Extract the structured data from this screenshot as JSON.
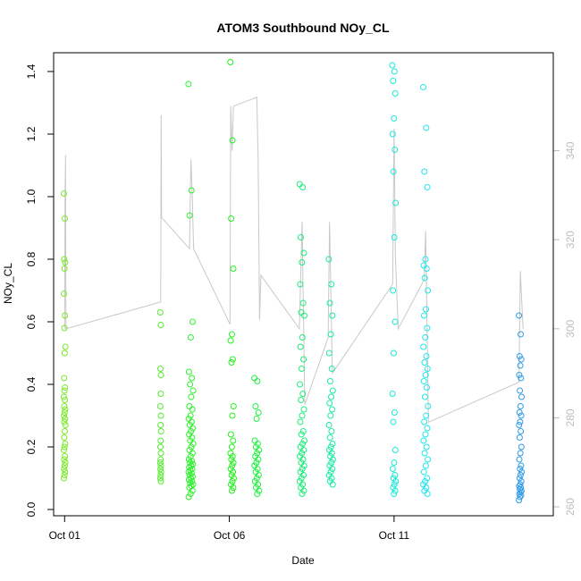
{
  "chart_data": {
    "type": "scatter",
    "title": "ATOM3 Southbound NOy_CL",
    "xlabel": "Date",
    "ylabel": "NOy_CL",
    "x_type": "date",
    "xlim": [
      "2017-09-30T16:00",
      "2017-10-15T20:00"
    ],
    "ylim": [
      -0.02,
      1.46
    ],
    "y_ticks": [
      0.0,
      0.2,
      0.4,
      0.6,
      0.8,
      1.0,
      1.2,
      1.4
    ],
    "x_ticks": [
      {
        "label": "Oct 01",
        "date": "2017-10-01T00:00"
      },
      {
        "label": "Oct 06",
        "date": "2017-10-06T00:00"
      },
      {
        "label": "Oct 11",
        "date": "2017-10-11T00:00"
      }
    ],
    "y2lim": [
      258,
      362
    ],
    "y2_ticks": [
      260,
      280,
      300,
      320,
      340
    ],
    "y2_color": "#bdbdbd",
    "grid": false,
    "legend": "none",
    "point_style": "open-circle",
    "flights": [
      {
        "center": "2017-10-01T00:00",
        "width_h": 1.2,
        "color": "#7ce92a",
        "values": [
          1.01,
          0.93,
          0.8,
          0.79,
          0.77,
          0.69,
          0.62,
          0.58,
          0.52,
          0.5,
          0.42,
          0.39,
          0.38,
          0.36,
          0.35,
          0.33,
          0.32,
          0.31,
          0.3,
          0.29,
          0.28,
          0.27,
          0.25,
          0.23,
          0.21,
          0.2,
          0.19,
          0.17,
          0.16,
          0.15,
          0.14,
          0.13,
          0.12,
          0.11,
          0.1
        ]
      },
      {
        "center": "2017-10-03T22:00",
        "width_h": 0.6,
        "color": "#55ec2e",
        "values": [
          0.63,
          0.59,
          0.45,
          0.43,
          0.37,
          0.33,
          0.3,
          0.27,
          0.25,
          0.22,
          0.2,
          0.18,
          0.16,
          0.15,
          0.14,
          0.13,
          0.12,
          0.11,
          0.1,
          0.09
        ]
      },
      {
        "center": "2017-10-04T20:00",
        "width_h": 3.5,
        "color": "#2ff02e",
        "values": [
          1.36,
          1.02,
          0.94,
          0.6,
          0.55,
          0.44,
          0.42,
          0.4,
          0.38,
          0.36,
          0.33,
          0.32,
          0.3,
          0.29,
          0.28,
          0.27,
          0.26,
          0.25,
          0.24,
          0.23,
          0.22,
          0.21,
          0.2,
          0.19,
          0.18,
          0.17,
          0.16,
          0.155,
          0.15,
          0.145,
          0.14,
          0.135,
          0.13,
          0.125,
          0.12,
          0.115,
          0.11,
          0.105,
          0.1,
          0.095,
          0.09,
          0.085,
          0.08,
          0.075,
          0.07,
          0.06,
          0.05,
          0.04
        ]
      },
      {
        "center": "2017-10-06T02:00",
        "width_h": 2.5,
        "color": "#22f21e",
        "values": [
          1.43,
          1.18,
          0.93,
          0.77,
          0.56,
          0.54,
          0.48,
          0.47,
          0.33,
          0.3,
          0.24,
          0.22,
          0.2,
          0.18,
          0.17,
          0.16,
          0.15,
          0.14,
          0.13,
          0.12,
          0.11,
          0.1,
          0.09,
          0.08,
          0.07,
          0.06
        ]
      },
      {
        "center": "2017-10-06T20:00",
        "width_h": 3.5,
        "color": "#20f040",
        "values": [
          0.42,
          0.41,
          0.33,
          0.31,
          0.29,
          0.22,
          0.21,
          0.2,
          0.19,
          0.18,
          0.17,
          0.16,
          0.15,
          0.14,
          0.13,
          0.12,
          0.11,
          0.1,
          0.09,
          0.08,
          0.07,
          0.06,
          0.05
        ]
      },
      {
        "center": "2017-10-08T05:00",
        "width_h": 3.5,
        "color": "#1cee7a",
        "values": [
          1.04,
          1.03,
          0.87,
          0.82,
          0.79,
          0.72,
          0.66,
          0.63,
          0.62,
          0.55,
          0.52,
          0.48,
          0.45,
          0.4,
          0.37,
          0.35,
          0.32,
          0.3,
          0.28,
          0.25,
          0.24,
          0.22,
          0.21,
          0.2,
          0.19,
          0.18,
          0.17,
          0.16,
          0.15,
          0.14,
          0.13,
          0.12,
          0.11,
          0.1,
          0.09,
          0.08,
          0.07,
          0.06,
          0.05
        ]
      },
      {
        "center": "2017-10-09T02:00",
        "width_h": 3.0,
        "color": "#1ceaa4",
        "values": [
          0.8,
          0.72,
          0.66,
          0.62,
          0.56,
          0.5,
          0.45,
          0.41,
          0.38,
          0.36,
          0.34,
          0.32,
          0.3,
          0.27,
          0.25,
          0.23,
          0.21,
          0.2,
          0.19,
          0.18,
          0.17,
          0.16,
          0.15,
          0.14,
          0.13,
          0.12,
          0.11,
          0.1,
          0.09,
          0.08
        ]
      },
      {
        "center": "2017-10-11T00:00",
        "width_h": 2.5,
        "color": "#1ce8d8",
        "values": [
          1.42,
          1.4,
          1.37,
          1.33,
          1.25,
          1.2,
          1.15,
          1.08,
          0.98,
          0.87,
          0.7,
          0.6,
          0.5,
          0.37,
          0.31,
          0.28,
          0.19,
          0.15,
          0.13,
          0.11,
          0.1,
          0.09,
          0.08,
          0.07,
          0.06,
          0.05
        ]
      },
      {
        "center": "2017-10-11T23:00",
        "width_h": 3.5,
        "color": "#22e6ec",
        "values": [
          1.35,
          1.22,
          1.08,
          1.03,
          0.8,
          0.78,
          0.77,
          0.74,
          0.7,
          0.64,
          0.62,
          0.58,
          0.55,
          0.52,
          0.49,
          0.47,
          0.45,
          0.43,
          0.41,
          0.39,
          0.36,
          0.33,
          0.3,
          0.28,
          0.26,
          0.24,
          0.22,
          0.2,
          0.18,
          0.16,
          0.14,
          0.12,
          0.1,
          0.09,
          0.08,
          0.07,
          0.06,
          0.05
        ]
      },
      {
        "center": "2017-10-14T20:00",
        "width_h": 2.0,
        "color": "#2f9be8",
        "values": [
          0.62,
          0.56,
          0.49,
          0.48,
          0.46,
          0.43,
          0.42,
          0.38,
          0.36,
          0.33,
          0.31,
          0.3,
          0.28,
          0.27,
          0.25,
          0.23,
          0.2,
          0.18,
          0.16,
          0.14,
          0.13,
          0.12,
          0.11,
          0.1,
          0.09,
          0.08,
          0.075,
          0.07,
          0.065,
          0.06,
          0.055,
          0.05,
          0.045,
          0.04,
          0.03
        ]
      }
    ],
    "secondary_line": {
      "color": "#c8c8c8",
      "path": [
        [
          "2017-10-01T00:00",
          300
        ],
        [
          "2017-10-01T00:20",
          330
        ],
        [
          "2017-10-01T00:40",
          339
        ],
        [
          "2017-10-01T01:00",
          300
        ],
        [
          "2017-10-03T22:00",
          306
        ],
        [
          "2017-10-03T22:20",
          348
        ],
        [
          "2017-10-03T22:40",
          325
        ],
        [
          "2017-10-04T19:00",
          318
        ],
        [
          "2017-10-04T20:00",
          338
        ],
        [
          "2017-10-04T21:00",
          330
        ],
        [
          "2017-10-04T22:00",
          318
        ],
        [
          "2017-10-06T00:30",
          301
        ],
        [
          "2017-10-06T01:00",
          350
        ],
        [
          "2017-10-06T02:00",
          340
        ],
        [
          "2017-10-06T03:00",
          350
        ],
        [
          "2017-10-06T20:00",
          352
        ],
        [
          "2017-10-06T21:00",
          338
        ],
        [
          "2017-10-06T22:00",
          302
        ],
        [
          "2017-10-06T23:00",
          312
        ],
        [
          "2017-10-08T03:00",
          300
        ],
        [
          "2017-10-08T05:00",
          324
        ],
        [
          "2017-10-08T07:00",
          283
        ],
        [
          "2017-10-09T00:00",
          298
        ],
        [
          "2017-10-09T01:00",
          324
        ],
        [
          "2017-10-09T03:00",
          290
        ],
        [
          "2017-10-10T23:00",
          310
        ],
        [
          "2017-10-11T00:00",
          345
        ],
        [
          "2017-10-11T01:00",
          316
        ],
        [
          "2017-10-11T03:00",
          300
        ],
        [
          "2017-10-11T22:00",
          311
        ],
        [
          "2017-10-11T23:00",
          322
        ],
        [
          "2017-10-12T01:00",
          279
        ],
        [
          "2017-10-14T19:00",
          288
        ],
        [
          "2017-10-14T20:00",
          313
        ],
        [
          "2017-10-14T22:00",
          300
        ]
      ]
    }
  }
}
